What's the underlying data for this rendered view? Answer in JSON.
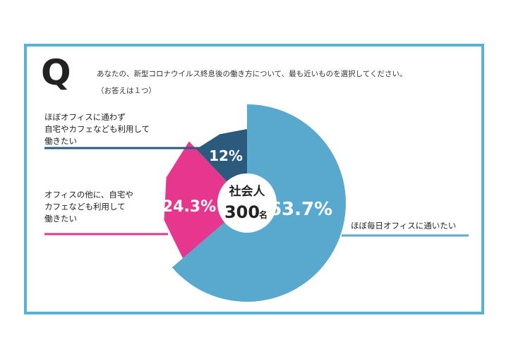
{
  "question": {
    "mark": "Q",
    "line1": "あなたの、新型コロナウイルス終息後の働き方について、最も近いものを選択してください。",
    "line2": "（お答えは１つ）"
  },
  "center": {
    "line1": "社会人",
    "number": "300",
    "unit": "名"
  },
  "colors": {
    "frame": "#5bb1d3",
    "office": "#58a9cd",
    "hybrid": "#2c5a7d",
    "other": "#e6368e"
  },
  "chart_data": {
    "type": "pie",
    "title": "",
    "slices": [
      {
        "label_lines": [
          "ほぼ毎日オフィスに通いたい"
        ],
        "value": 63.7,
        "display": "63.7%",
        "color": "#58a9cd"
      },
      {
        "label_lines": [
          "オフィスの他に、自宅や",
          "カフェなども利用して",
          "働きたい"
        ],
        "value": 24.3,
        "display": "24.3%",
        "color": "#e6368e"
      },
      {
        "label_lines": [
          "ほぼオフィスに通わず",
          "自宅やカフェなども利用して",
          "働きたい"
        ],
        "value": 12,
        "display": "12%",
        "color": "#2c5a7d"
      }
    ]
  }
}
